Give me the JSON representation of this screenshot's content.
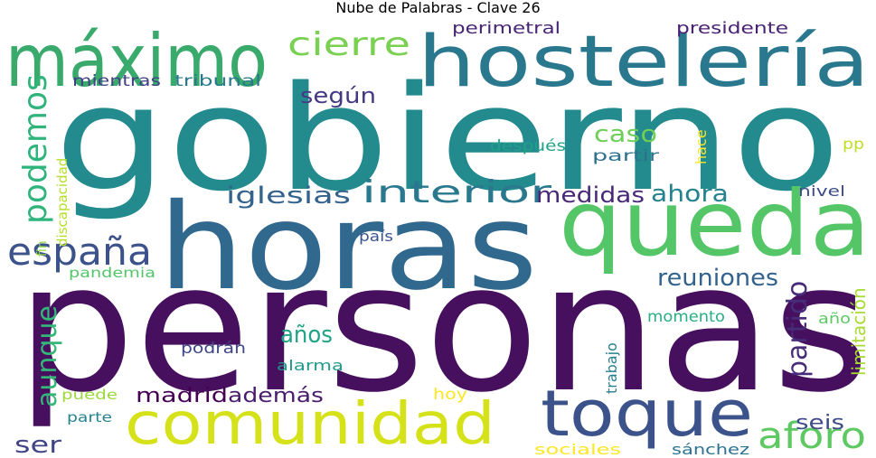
{
  "title": "Nube de Palabras - Clave 26",
  "words": [
    {
      "text": "personas",
      "color": "#46105e"
    },
    {
      "text": "gobierno",
      "color": "#238a8d"
    },
    {
      "text": "horas",
      "color": "#31688e"
    },
    {
      "text": "queda",
      "color": "#55c667"
    },
    {
      "text": "hostelería",
      "color": "#2a788e"
    },
    {
      "text": "máximo",
      "color": "#3aaa6c"
    },
    {
      "text": "comunidad",
      "color": "#d5e21a"
    },
    {
      "text": "toque",
      "color": "#3b528b"
    },
    {
      "text": "españa",
      "color": "#3b528b"
    },
    {
      "text": "interior",
      "color": "#2a788e"
    },
    {
      "text": "podemos",
      "color": "#2fb47c"
    },
    {
      "text": "cierre",
      "color": "#7ad151"
    },
    {
      "text": "aforo",
      "color": "#5ec962"
    },
    {
      "text": "iglesias",
      "color": "#33638d"
    },
    {
      "text": "medidas",
      "color": "#482878"
    },
    {
      "text": "ahora",
      "color": "#26828e"
    },
    {
      "text": "reuniones",
      "color": "#33638d"
    },
    {
      "text": "según",
      "color": "#443a83"
    },
    {
      "text": "caso",
      "color": "#6ece58"
    },
    {
      "text": "aunque",
      "color": "#35b779"
    },
    {
      "text": "partido",
      "color": "#472c7a"
    },
    {
      "text": "ser",
      "color": "#414487"
    },
    {
      "text": "años",
      "color": "#20a386"
    },
    {
      "text": "madrid",
      "color": "#440154"
    },
    {
      "text": "además",
      "color": "#481c6e"
    },
    {
      "text": "seis",
      "color": "#3e4a89"
    },
    {
      "text": "limitación",
      "color": "#a8db34"
    },
    {
      "text": "perimetral",
      "color": "#482475"
    },
    {
      "text": "presidente",
      "color": "#482173"
    },
    {
      "text": "mientras",
      "color": "#424086"
    },
    {
      "text": "tribunal",
      "color": "#2a788e"
    },
    {
      "text": "discapacidad",
      "color": "#b5de2b"
    },
    {
      "text": "después",
      "color": "#1fa188"
    },
    {
      "text": "partir",
      "color": "#2d718e"
    },
    {
      "text": "hace",
      "color": "#fde725"
    },
    {
      "text": "pp",
      "color": "#bddf26"
    },
    {
      "text": "nivel",
      "color": "#3e4c8a"
    },
    {
      "text": "fin",
      "color": "#95d840"
    },
    {
      "text": "país",
      "color": "#39568c"
    },
    {
      "text": "pandemia",
      "color": "#52c569"
    },
    {
      "text": "momento",
      "color": "#29af7f"
    },
    {
      "text": "año",
      "color": "#5cc863"
    },
    {
      "text": "podrán",
      "color": "#3f4788"
    },
    {
      "text": "alarma",
      "color": "#1f998a"
    },
    {
      "text": "trabajo",
      "color": "#277f8e"
    },
    {
      "text": "puede",
      "color": "#9bd93c"
    },
    {
      "text": "parte",
      "color": "#25848e"
    },
    {
      "text": "hoy",
      "color": "#fbe723"
    },
    {
      "text": "sociales",
      "color": "#fde725"
    },
    {
      "text": "sánchez",
      "color": "#2c728e"
    }
  ]
}
